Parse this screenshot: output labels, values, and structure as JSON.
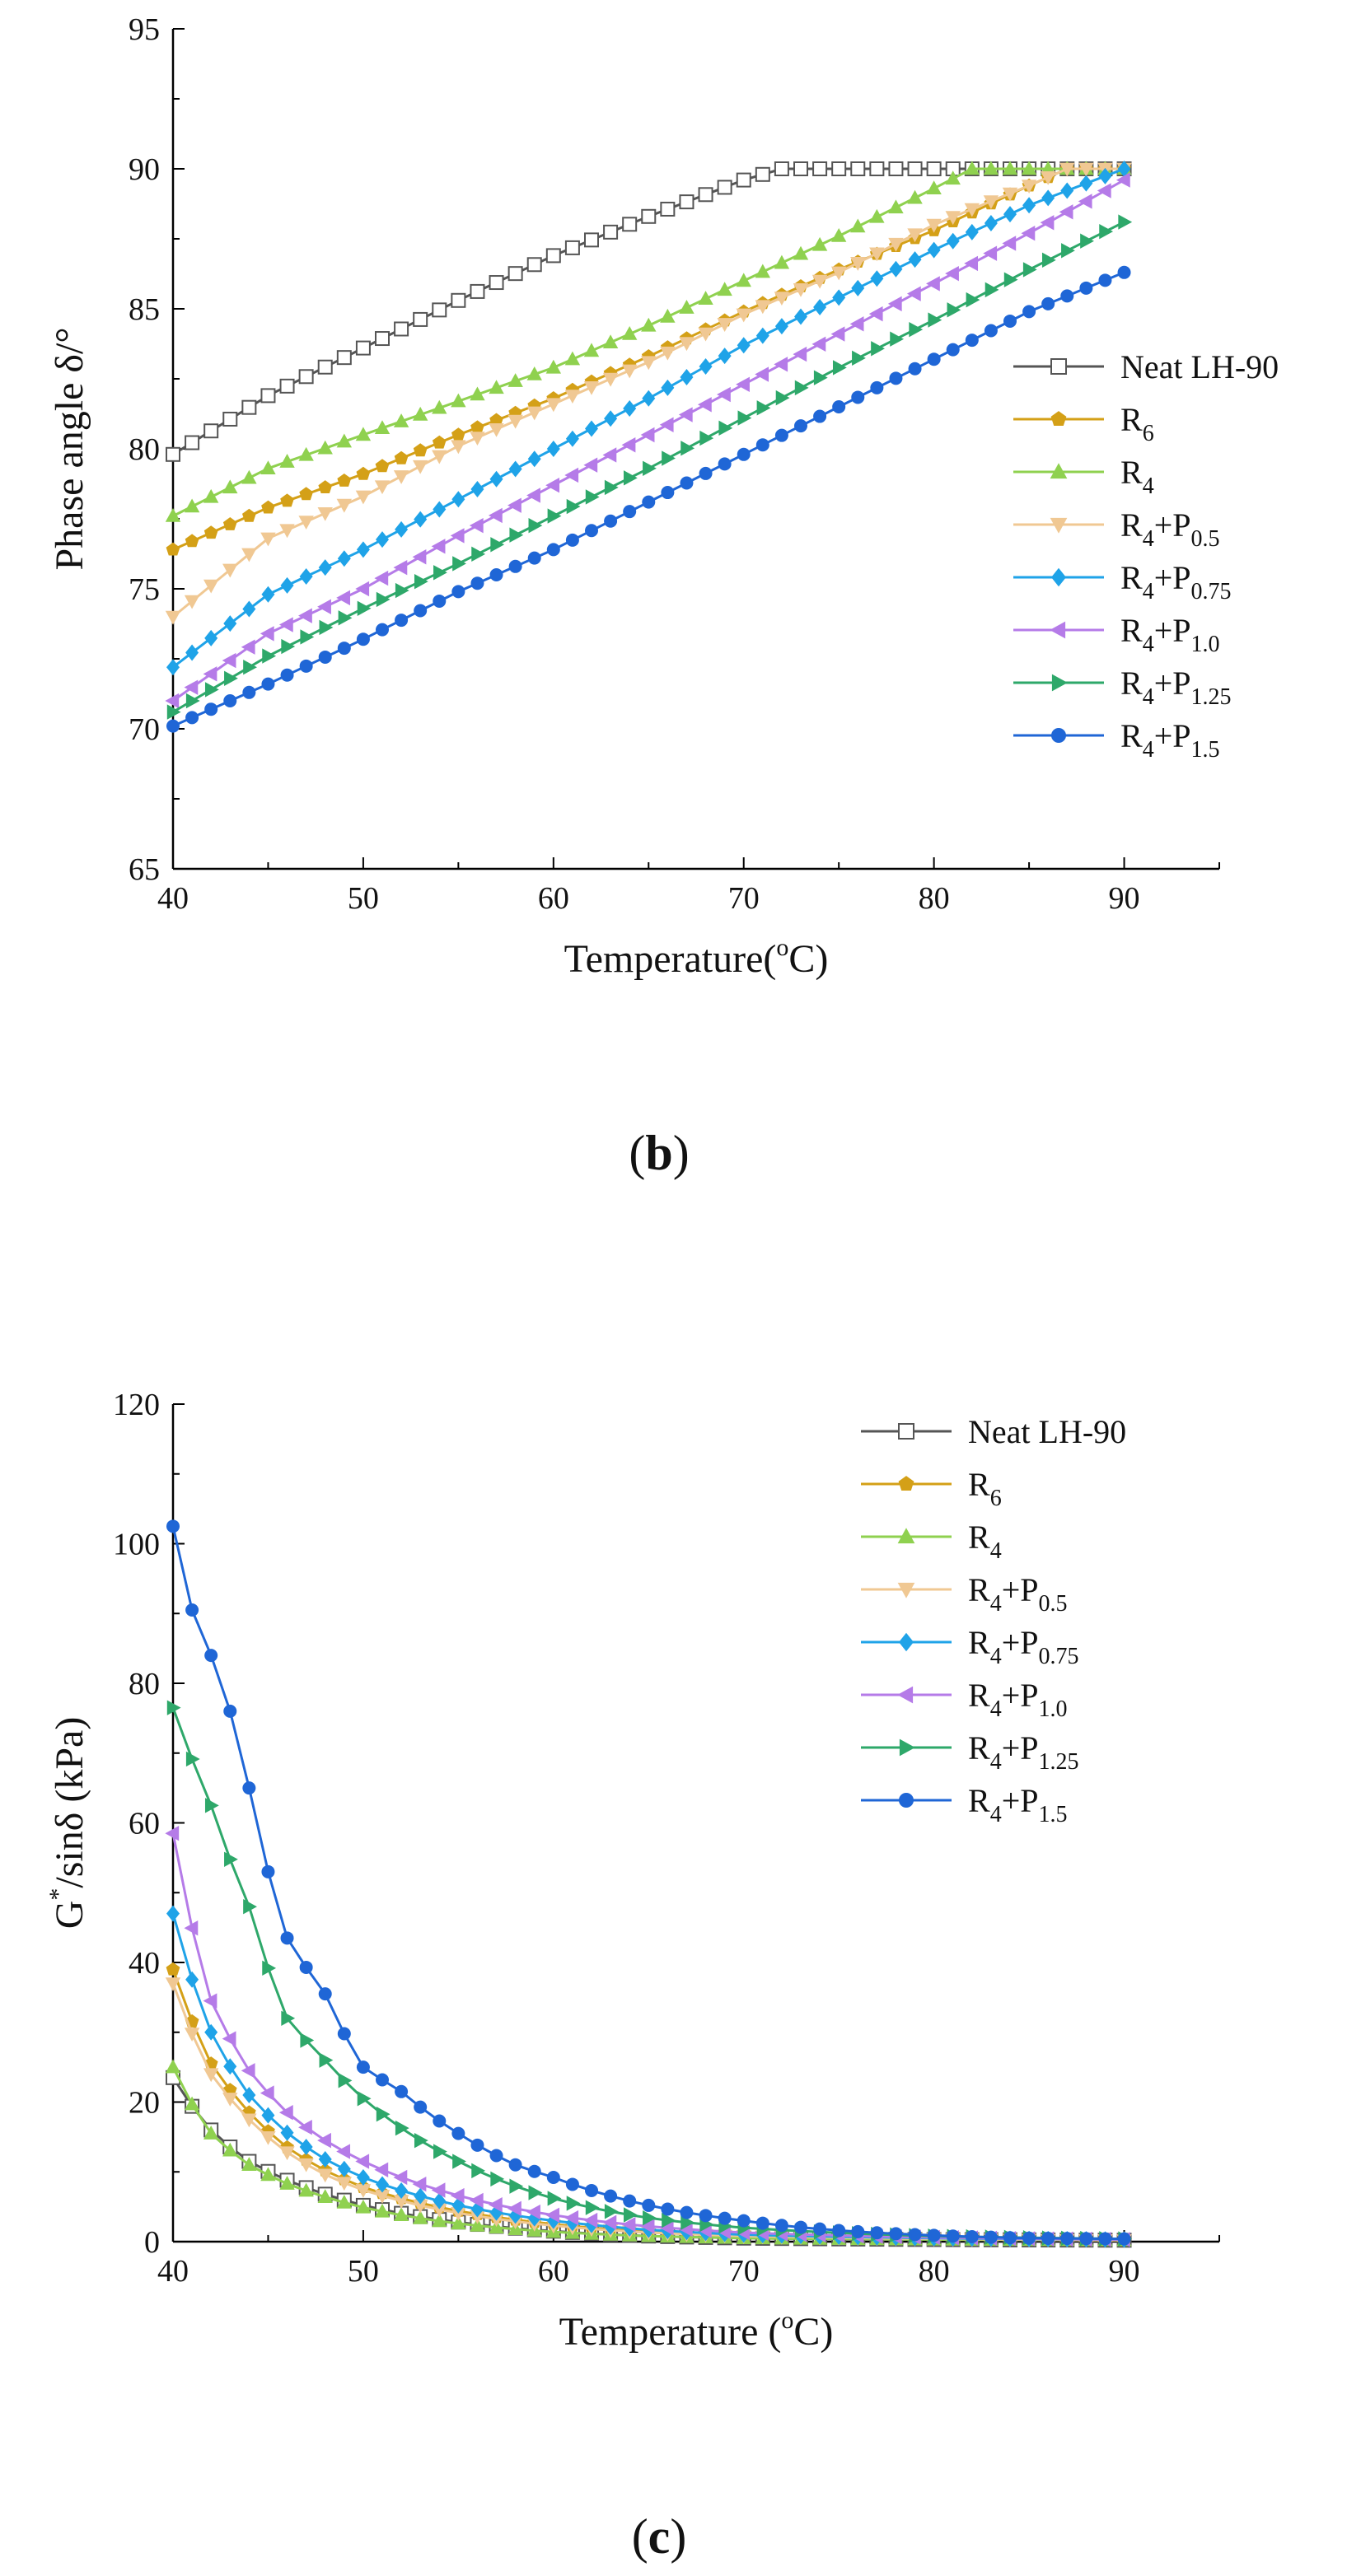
{
  "chart_data": [
    {
      "type": "line",
      "panel_label": "b",
      "xlabel": "Temperature(",
      "xlabel_sup": "o",
      "xlabel_tail": "C)",
      "ylabel": "Phase angle δ/°",
      "xlim": [
        40,
        95
      ],
      "ylim": [
        65,
        95
      ],
      "xticks": [
        40,
        50,
        60,
        70,
        80,
        90
      ],
      "yticks": [
        65,
        70,
        75,
        80,
        85,
        90,
        95
      ],
      "legend_position": "right",
      "series": [
        {
          "name": "Neat LH-90",
          "base": "Neat LH-90",
          "sub": "",
          "color": "#555555",
          "marker": "square-open",
          "x": [
            40,
            45,
            50,
            55,
            60,
            65,
            70,
            72,
            75,
            80,
            85,
            90
          ],
          "y": [
            79.8,
            81.9,
            83.6,
            85.3,
            86.9,
            88.3,
            89.6,
            90.0,
            90.0,
            90.0,
            90.0,
            90.0
          ]
        },
        {
          "name": "R6",
          "base": "R",
          "sub": "6",
          "color": "#d4a017",
          "marker": "pentagon",
          "x": [
            40,
            45,
            50,
            55,
            60,
            65,
            70,
            75,
            80,
            85,
            87,
            90
          ],
          "y": [
            76.4,
            77.9,
            79.1,
            80.5,
            81.8,
            83.3,
            84.9,
            86.4,
            87.8,
            89.4,
            90.0,
            90.0
          ]
        },
        {
          "name": "R4",
          "base": "R",
          "sub": "4",
          "color": "#8fd14f",
          "marker": "triangle-up",
          "x": [
            40,
            45,
            50,
            55,
            60,
            65,
            70,
            75,
            80,
            82,
            85,
            90
          ],
          "y": [
            77.6,
            79.3,
            80.5,
            81.7,
            82.9,
            84.4,
            86.0,
            87.6,
            89.3,
            90.0,
            90.0,
            90.0
          ]
        },
        {
          "name": "R4+P0.5",
          "base": "R",
          "sub": "4",
          "tail": "+P",
          "tail_sub": "0.5",
          "color": "#f0c893",
          "marker": "triangle-down",
          "x": [
            40,
            45,
            50,
            55,
            60,
            65,
            70,
            75,
            80,
            85,
            87,
            90
          ],
          "y": [
            74.0,
            76.8,
            78.3,
            80.1,
            81.6,
            83.1,
            84.8,
            86.3,
            88.0,
            89.4,
            90.0,
            90.0
          ]
        },
        {
          "name": "R4+P0.75",
          "base": "R",
          "sub": "4",
          "tail": "+P",
          "tail_sub": "0.75",
          "color": "#1fa3e8",
          "marker": "diamond",
          "x": [
            40,
            45,
            50,
            55,
            60,
            65,
            70,
            75,
            80,
            85,
            90
          ],
          "y": [
            72.2,
            74.8,
            76.4,
            78.2,
            80.0,
            81.8,
            83.7,
            85.4,
            87.1,
            88.7,
            90.0
          ]
        },
        {
          "name": "R4+P1.0",
          "base": "R",
          "sub": "4",
          "tail": "+P",
          "tail_sub": "1.0",
          "color": "#b57be8",
          "marker": "triangle-left",
          "x": [
            40,
            45,
            50,
            55,
            60,
            65,
            70,
            75,
            80,
            85,
            90
          ],
          "y": [
            71.0,
            73.4,
            75.0,
            76.9,
            78.7,
            80.5,
            82.3,
            84.1,
            85.9,
            87.7,
            89.6
          ]
        },
        {
          "name": "R4+P1.25",
          "base": "R",
          "sub": "4",
          "tail": "+P",
          "tail_sub": "1.25",
          "color": "#2ea86a",
          "marker": "triangle-right",
          "x": [
            40,
            45,
            50,
            55,
            60,
            65,
            70,
            75,
            80,
            85,
            90
          ],
          "y": [
            70.6,
            72.6,
            74.3,
            75.9,
            77.6,
            79.3,
            81.1,
            82.9,
            84.6,
            86.4,
            88.1
          ]
        },
        {
          "name": "R4+P1.5",
          "base": "R",
          "sub": "4",
          "tail": "+P",
          "tail_sub": "1.5",
          "color": "#1f66d6",
          "marker": "circle",
          "x": [
            40,
            45,
            50,
            55,
            60,
            65,
            70,
            75,
            80,
            85,
            90
          ],
          "y": [
            70.1,
            71.6,
            73.2,
            74.9,
            76.4,
            78.1,
            79.8,
            81.5,
            83.2,
            84.9,
            86.3
          ]
        }
      ]
    },
    {
      "type": "line",
      "panel_label": "c",
      "xlabel": "Temperature (",
      "xlabel_sup": "o",
      "xlabel_tail": "C)",
      "ylabel": "G",
      "ylabel_sup": "*",
      "ylabel_tail": "/sinδ (kPa)",
      "xlim": [
        40,
        95
      ],
      "ylim": [
        0,
        120
      ],
      "xticks": [
        40,
        50,
        60,
        70,
        80,
        90
      ],
      "yticks": [
        0,
        20,
        40,
        60,
        80,
        100,
        120
      ],
      "legend_position": "top-right",
      "series": [
        {
          "name": "Neat LH-90",
          "base": "Neat LH-90",
          "sub": "",
          "color": "#555555",
          "marker": "square-open",
          "x": [
            40,
            42,
            44,
            46,
            48,
            50,
            55,
            60,
            65,
            70,
            80,
            90
          ],
          "y": [
            23.5,
            16.0,
            11.5,
            8.8,
            6.8,
            5.2,
            2.8,
            1.5,
            0.8,
            0.5,
            0.3,
            0.2
          ]
        },
        {
          "name": "R6",
          "base": "R",
          "sub": "6",
          "color": "#d4a017",
          "marker": "pentagon",
          "x": [
            40,
            42,
            44,
            46,
            48,
            50,
            55,
            60,
            65,
            70,
            80,
            90
          ],
          "y": [
            39.0,
            25.5,
            18.5,
            13.5,
            10.2,
            7.8,
            4.4,
            2.5,
            1.4,
            0.9,
            0.4,
            0.2
          ]
        },
        {
          "name": "R4",
          "base": "R",
          "sub": "4",
          "color": "#8fd14f",
          "marker": "triangle-up",
          "x": [
            40,
            42,
            44,
            46,
            48,
            50,
            55,
            60,
            65,
            70,
            80,
            90
          ],
          "y": [
            25.0,
            15.5,
            11.0,
            8.3,
            6.4,
            4.9,
            2.6,
            1.4,
            0.8,
            0.5,
            0.3,
            0.2
          ]
        },
        {
          "name": "R4+P0.5",
          "base": "R",
          "sub": "4",
          "tail": "+P",
          "tail_sub": "0.5",
          "color": "#f0c893",
          "marker": "triangle-down",
          "x": [
            40,
            42,
            44,
            46,
            48,
            50,
            55,
            60,
            65,
            70,
            80,
            90
          ],
          "y": [
            37.0,
            24.0,
            17.5,
            12.8,
            9.6,
            7.4,
            4.1,
            2.3,
            1.3,
            0.8,
            0.4,
            0.2
          ]
        },
        {
          "name": "R4+P0.75",
          "base": "R",
          "sub": "4",
          "tail": "+P",
          "tail_sub": "0.75",
          "color": "#1fa3e8",
          "marker": "diamond",
          "x": [
            40,
            42,
            44,
            46,
            48,
            50,
            55,
            60,
            65,
            70,
            80,
            90
          ],
          "y": [
            47.0,
            30.0,
            21.0,
            15.6,
            11.8,
            9.2,
            5.2,
            3.0,
            1.7,
            1.0,
            0.5,
            0.3
          ]
        },
        {
          "name": "R4+P1.0",
          "base": "R",
          "sub": "4",
          "tail": "+P",
          "tail_sub": "1.0",
          "color": "#b57be8",
          "marker": "triangle-left",
          "x": [
            40,
            42,
            44,
            46,
            48,
            50,
            55,
            60,
            65,
            70,
            80,
            90
          ],
          "y": [
            58.5,
            34.5,
            24.5,
            18.5,
            14.5,
            11.5,
            6.6,
            3.8,
            2.2,
            1.3,
            0.6,
            0.3
          ]
        },
        {
          "name": "R4+P1.25",
          "base": "R",
          "sub": "4",
          "tail": "+P",
          "tail_sub": "1.25",
          "color": "#2ea86a",
          "marker": "triangle-right",
          "x": [
            40,
            42,
            44,
            46,
            48,
            50,
            55,
            60,
            65,
            70,
            80,
            90
          ],
          "y": [
            76.5,
            62.5,
            48.0,
            32.0,
            26.0,
            20.5,
            11.5,
            6.2,
            3.4,
            2.0,
            0.8,
            0.4
          ]
        },
        {
          "name": "R4+P1.5",
          "base": "R",
          "sub": "4",
          "tail": "+P",
          "tail_sub": "1.5",
          "color": "#1f66d6",
          "marker": "circle",
          "x": [
            40,
            41,
            42,
            43,
            44,
            45,
            46,
            48,
            50,
            52,
            55,
            58,
            60,
            65,
            70,
            75,
            80,
            85,
            90
          ],
          "y": [
            102.5,
            90.5,
            84.0,
            76.0,
            65.0,
            53.0,
            43.5,
            35.5,
            25.0,
            21.5,
            15.5,
            11.0,
            9.2,
            5.2,
            3.0,
            1.6,
            0.9,
            0.5,
            0.4
          ]
        }
      ]
    }
  ]
}
